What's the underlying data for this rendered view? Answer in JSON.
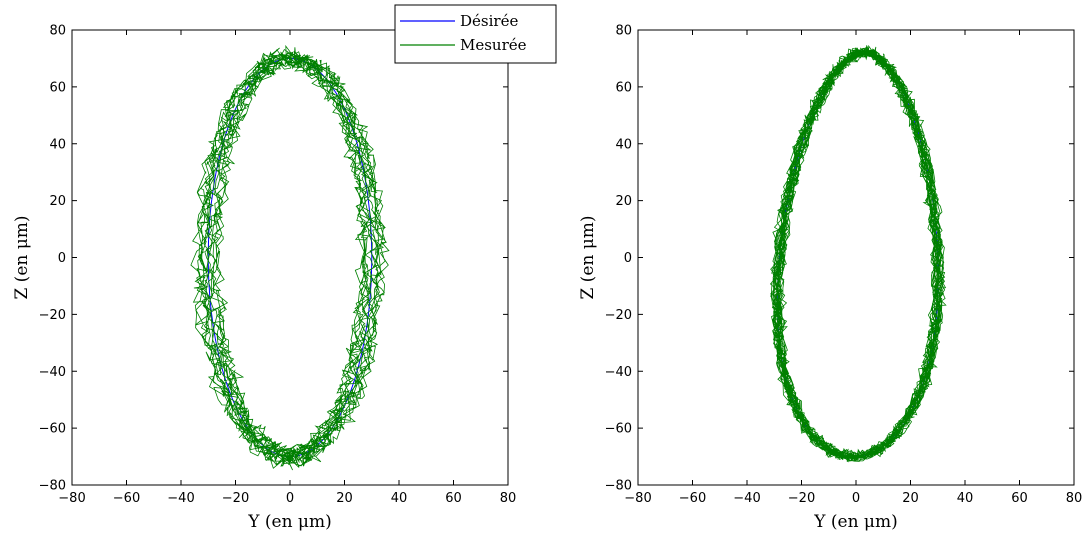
{
  "chart_data": [
    {
      "type": "line",
      "title": "",
      "xlabel": "Y (en μm)",
      "ylabel": "Z (en μm)",
      "xlim": [
        -80,
        80
      ],
      "ylim": [
        -80,
        80
      ],
      "xticks": [
        "−80",
        "−60",
        "−40",
        "−20",
        "0",
        "20",
        "40",
        "60",
        "80"
      ],
      "yticks": [
        "80",
        "60",
        "40",
        "20",
        "0",
        "−20",
        "−40",
        "−60",
        "−80"
      ],
      "grid": false,
      "legend": {
        "placement": "top-center",
        "entries": [
          "Désirée",
          "Mesurée"
        ]
      },
      "series": [
        {
          "name": "Désirée",
          "color": "#0000ff",
          "shape": "ellipse",
          "x_range": [
            -30,
            30
          ],
          "y_range": [
            -70,
            70
          ]
        },
        {
          "name": "Mesurée",
          "color": "#008000",
          "shape": "noisy ellipse",
          "x_range": [
            -38,
            37
          ],
          "y_range": [
            -75,
            74
          ]
        }
      ]
    },
    {
      "type": "line",
      "title": "",
      "xlabel": "Y (en μm)",
      "ylabel": "Z (en μm)",
      "xlim": [
        -80,
        80
      ],
      "ylim": [
        -80,
        80
      ],
      "xticks": [
        "−80",
        "−60",
        "−40",
        "−20",
        "0",
        "20",
        "40",
        "60",
        "80"
      ],
      "yticks": [
        "80",
        "60",
        "40",
        "20",
        "0",
        "−20",
        "−40",
        "−60",
        "−80"
      ],
      "grid": false,
      "series": [
        {
          "name": "Désirée",
          "color": "#0000ff",
          "shape": "egg",
          "x_range": [
            -28,
            30
          ],
          "y_range": [
            -70,
            72
          ]
        },
        {
          "name": "Mesurée",
          "color": "#008000",
          "shape": "noisy egg",
          "x_range": [
            -33,
            32
          ],
          "y_range": [
            -74,
            74
          ]
        }
      ]
    }
  ]
}
